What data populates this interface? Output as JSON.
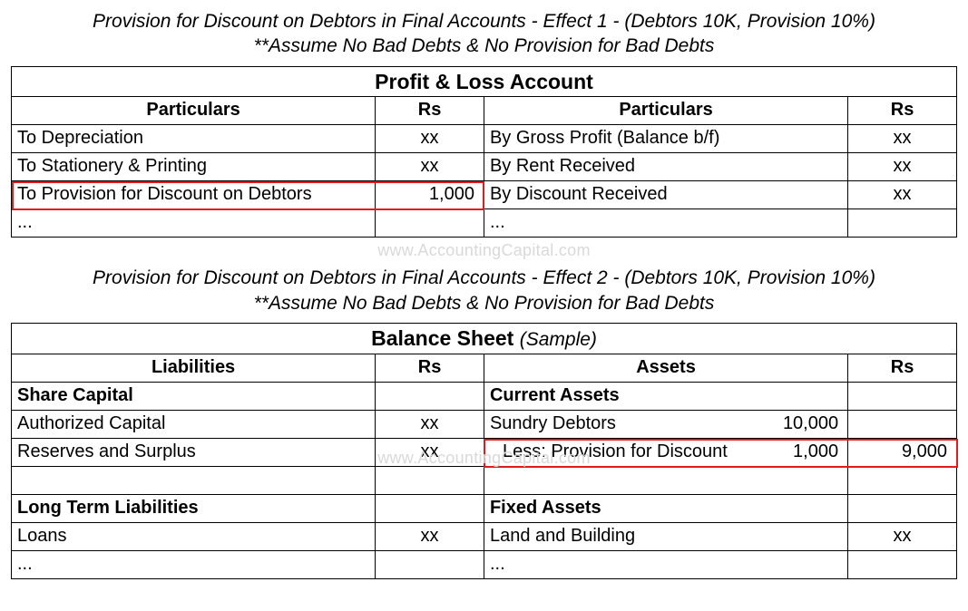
{
  "section1": {
    "caption_line1": "Provision for Discount on Debtors in Final Accounts - Effect 1 - (Debtors 10K, Provision 10%)",
    "caption_line2": "**Assume No Bad Debts & No Provision for Bad Debts",
    "title": "Profit & Loss Account",
    "headers": {
      "left_part": "Particulars",
      "left_rs": "Rs",
      "right_part": "Particulars",
      "right_rs": "Rs"
    },
    "rows": [
      {
        "lp": "To Depreciation",
        "lr": "xx",
        "rp": "By Gross Profit (Balance b/f)",
        "rr": "xx"
      },
      {
        "lp": "To Stationery & Printing",
        "lr": "xx",
        "rp": "By Rent Received",
        "rr": "xx"
      },
      {
        "lp": "To Provision for Discount on Debtors",
        "lr": "1,000",
        "rp": "By Discount Received",
        "rr": "xx",
        "highlight_left": true
      },
      {
        "lp": "...",
        "lr": "",
        "rp": "...",
        "rr": ""
      }
    ]
  },
  "watermark": "www.AccountingCapital.com",
  "section2": {
    "caption_line1": "Provision for Discount on Debtors in Final Accounts - Effect 2 - (Debtors 10K, Provision 10%)",
    "caption_line2": "**Assume No Bad Debts & No Provision for Bad Debts",
    "title_main": "Balance Sheet",
    "title_sample": "(Sample)",
    "headers": {
      "left_part": "Liabilities",
      "left_rs": "Rs",
      "right_part": "Assets",
      "right_rs": "Rs"
    },
    "rows": [
      {
        "lp": "Share Capital",
        "lbold": true,
        "lr": "",
        "rp": "Current Assets",
        "rbold": true,
        "rr": ""
      },
      {
        "lp": "Authorized Capital",
        "lr": "xx",
        "rp_split": {
          "lbl": "Sundry Debtors",
          "amt": "10,000"
        },
        "rr": ""
      },
      {
        "lp": "Reserves and Surplus",
        "lr": "xx",
        "rp_split": {
          "lbl": "Less: Provision for Discount",
          "amt": "1,000",
          "indent": true
        },
        "rr": "9,000",
        "highlight_right": true
      },
      {
        "lp": "",
        "lr": "",
        "rp": "",
        "rr": ""
      },
      {
        "lp": "Long Term Liabilities",
        "lbold": true,
        "lr": "",
        "rp": "Fixed Assets",
        "rbold": true,
        "rr": ""
      },
      {
        "lp": "Loans",
        "lr": "xx",
        "rp": "Land and Building",
        "rr": "xx"
      },
      {
        "lp": "...",
        "lr": "",
        "rp": "...",
        "rr": ""
      }
    ]
  },
  "colors": {
    "highlight": "#e11b1b",
    "watermark": "#d9d9d9",
    "border": "#000000"
  }
}
